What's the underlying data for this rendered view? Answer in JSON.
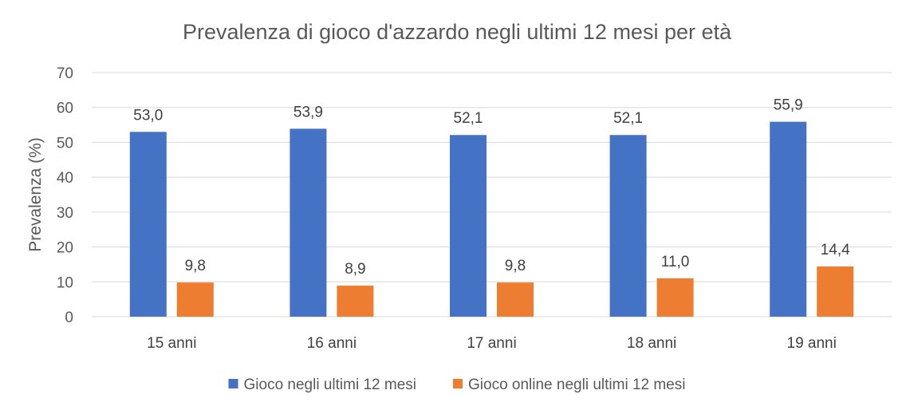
{
  "chart_data": {
    "type": "bar",
    "title": "Prevalenza di gioco d'azzardo negli ultimi 12 mesi per età",
    "ylabel": "Prevalenza (%)",
    "xlabel": "",
    "ylim": [
      0,
      70
    ],
    "yticks": [
      0,
      10,
      20,
      30,
      40,
      50,
      60,
      70
    ],
    "grid": true,
    "legend_position": "bottom",
    "categories": [
      "15 anni",
      "16 anni",
      "17 anni",
      "18 anni",
      "19 anni"
    ],
    "series": [
      {
        "name": "Gioco negli ultimi 12 mesi",
        "color": "#4472c4",
        "values": [
          53.0,
          53.9,
          52.1,
          52.1,
          55.9
        ],
        "labels": [
          "53,0",
          "53,9",
          "52,1",
          "52,1",
          "55,9"
        ]
      },
      {
        "name": "Gioco online negli ultimi 12 mesi",
        "color": "#ed7d31",
        "values": [
          9.8,
          8.9,
          9.8,
          11.0,
          14.4
        ],
        "labels": [
          "9,8",
          "8,9",
          "9,8",
          "11,0",
          "14,4"
        ]
      }
    ]
  }
}
